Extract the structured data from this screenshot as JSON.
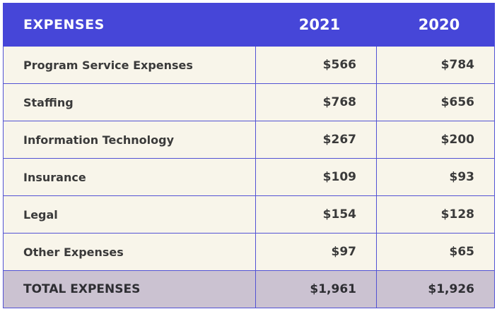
{
  "header": {
    "label": "EXPENSES",
    "year_a": "2021",
    "year_b": "2020"
  },
  "rows": [
    {
      "label": "Program Service Expenses",
      "v2021": "$566",
      "v2020": "$784"
    },
    {
      "label": "Staffing",
      "v2021": "$768",
      "v2020": "$656"
    },
    {
      "label": "Information Technology",
      "v2021": "$267",
      "v2020": "$200"
    },
    {
      "label": "Insurance",
      "v2021": "$109",
      "v2020": "$93"
    },
    {
      "label": "Legal",
      "v2021": "$154",
      "v2020": "$128"
    },
    {
      "label": "Other Expenses",
      "v2021": "$97",
      "v2020": "$65"
    }
  ],
  "total": {
    "label": "TOTAL EXPENSES",
    "v2021": "$1,961",
    "v2020": "$1,926"
  },
  "colors": {
    "header_bg": "#4646d8",
    "row_bg": "#f8f5ea",
    "total_bg": "#cbc2d1",
    "border": "#5252d4"
  }
}
